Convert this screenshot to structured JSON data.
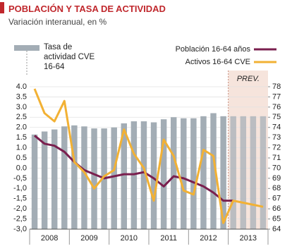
{
  "chart_data": {
    "type": "bar-line",
    "title": "POBLACIÓN Y TASA DE ACTIVIDAD",
    "subtitle": "Variación interanual, en %",
    "categories": [
      null,
      null,
      null,
      null,
      null,
      null,
      null,
      null,
      null,
      null,
      null,
      null,
      null,
      null,
      null,
      null,
      null,
      null,
      null,
      null,
      null,
      null,
      null,
      null
    ],
    "category_groups": [
      "2008",
      "2009",
      "2010",
      "2011",
      "2012",
      "2013"
    ],
    "forecast_label": "PREV.",
    "grid": true,
    "series": [
      {
        "name": "Tasa de actividad CVE 16-64",
        "type": "bar",
        "axis": "y2",
        "color": "#a3adb5",
        "values": [
          73.3,
          73.6,
          73.8,
          74.1,
          74.2,
          74.1,
          73.9,
          73.9,
          74.0,
          74.4,
          74.6,
          74.6,
          74.5,
          74.8,
          75.0,
          74.9,
          74.9,
          75.1,
          75.4,
          75.1,
          75.1,
          75.1,
          75.1,
          75.1
        ]
      },
      {
        "name": "Población 16-64 años",
        "type": "line",
        "color": "#7a1f4e",
        "values": [
          1.6,
          1.2,
          1.1,
          0.8,
          0.3,
          -0.1,
          -0.3,
          -0.5,
          -0.4,
          -0.3,
          -0.3,
          -0.2,
          -0.5,
          -0.9,
          -0.4,
          -0.5,
          -0.7,
          -0.9,
          -1.2,
          -1.6,
          -1.6,
          null,
          null,
          null
        ]
      },
      {
        "name": "Activos 16-64 CVE",
        "type": "line",
        "color": "#f2b134",
        "values": [
          3.9,
          2.7,
          2.3,
          3.3,
          0.3,
          -0.2,
          -1.0,
          -0.4,
          -0.1,
          1.9,
          0.7,
          0.0,
          -1.6,
          1.4,
          0.6,
          -1.1,
          -1.3,
          0.9,
          0.6,
          -2.7,
          -1.6,
          -1.7,
          -1.8,
          -1.9
        ]
      }
    ],
    "ylim": [
      -3,
      4
    ],
    "yticks": [
      {
        "value": -3,
        "label": "-3,0"
      },
      {
        "value": -2.5,
        "label": "-2,5"
      },
      {
        "value": -2,
        "label": "-2,0"
      },
      {
        "value": -1.5,
        "label": "-1,5"
      },
      {
        "value": -1,
        "label": "-1,0"
      },
      {
        "value": -0.5,
        "label": "-0,5"
      },
      {
        "value": 0,
        "label": "0.0"
      },
      {
        "value": 0.5,
        "label": "0.5"
      },
      {
        "value": 1,
        "label": "1.0"
      },
      {
        "value": 1.5,
        "label": "1.5"
      },
      {
        "value": 2,
        "label": "2.0"
      },
      {
        "value": 2.5,
        "label": "2.5"
      },
      {
        "value": 3,
        "label": "3.0"
      },
      {
        "value": 3.5,
        "label": "3.5"
      },
      {
        "value": 4,
        "label": "4.0"
      }
    ],
    "y2lim": [
      64,
      78
    ],
    "y2ticks": [
      64,
      65,
      66,
      67,
      68,
      69,
      70,
      71,
      72,
      73,
      74,
      75,
      76,
      77,
      78
    ]
  }
}
